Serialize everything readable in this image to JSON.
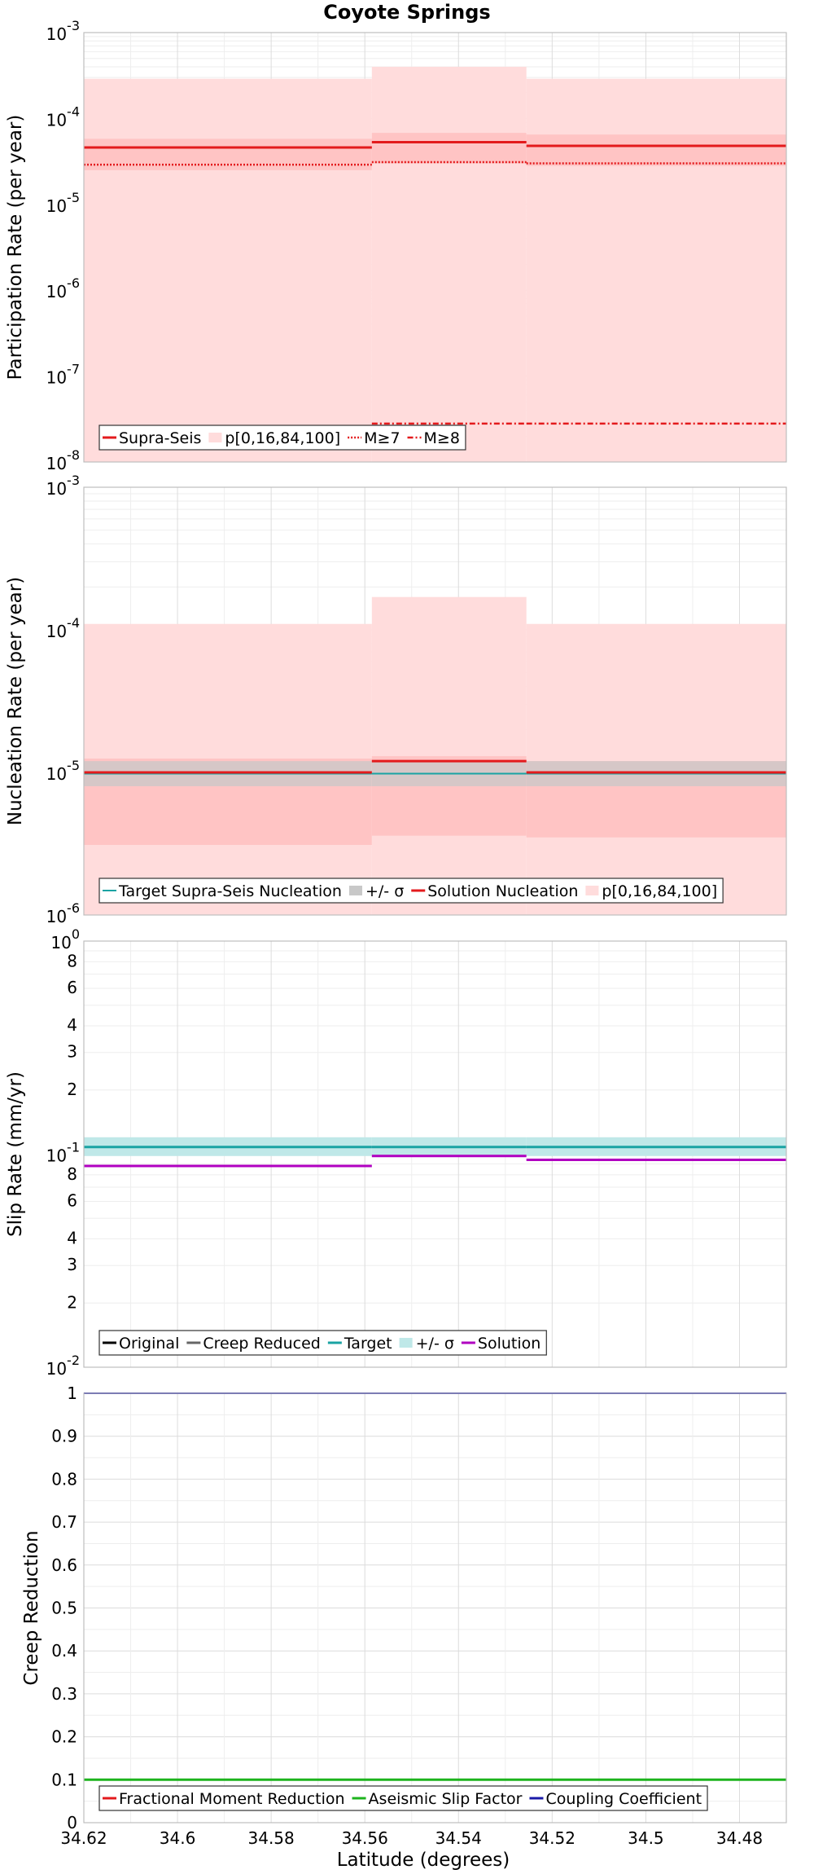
{
  "chart_data": {
    "type": "line",
    "title": "Coyote Springs",
    "xlabel": "Latitude (degrees)",
    "xlim": [
      34.62,
      34.47
    ],
    "x_ticks": [
      "34.62",
      "34.6",
      "34.58",
      "34.56",
      "34.54",
      "34.52",
      "34.5",
      "34.48"
    ],
    "x_tick_values": [
      34.62,
      34.6,
      34.58,
      34.56,
      34.54,
      34.52,
      34.5,
      34.48
    ],
    "panels": [
      {
        "id": "participation",
        "ylabel": "Participation Rate (per year)",
        "yscale": "log",
        "ylim": [
          1e-08,
          0.001
        ],
        "y_ticks": [
          {
            "value": 0.001,
            "base": "10",
            "exp": "-3"
          },
          {
            "value": 0.0001,
            "base": "10",
            "exp": "-4"
          },
          {
            "value": 1e-05,
            "base": "10",
            "exp": "-5"
          },
          {
            "value": 1e-06,
            "base": "10",
            "exp": "-6"
          },
          {
            "value": 1e-07,
            "base": "10",
            "exp": "-7"
          },
          {
            "value": 1e-08,
            "base": "10",
            "exp": "-8"
          }
        ],
        "legend": [
          "Supra-Seis",
          "p[0,16,84,100]",
          "M≥7",
          "M≥8"
        ],
        "sections": [
          {
            "x0": 34.62,
            "x1": 34.5585,
            "supra_seis": 4.6e-05,
            "m7": 2.9e-05,
            "m8": null,
            "p0": 1e-08,
            "p16": 2.5e-05,
            "p84": 5.8e-05,
            "p100": 0.00029
          },
          {
            "x0": 34.5585,
            "x1": 34.5255,
            "supra_seis": 5.3e-05,
            "m7": 3.1e-05,
            "m8": 2.8e-08,
            "p0": 1e-08,
            "p16": 3e-05,
            "p84": 6.8e-05,
            "p100": 0.0004
          },
          {
            "x0": 34.5255,
            "x1": 34.47,
            "supra_seis": 4.8e-05,
            "m7": 3e-05,
            "m8": 2.8e-08,
            "p0": 1e-08,
            "p16": 2.8e-05,
            "p84": 6.5e-05,
            "p100": 0.00029
          }
        ]
      },
      {
        "id": "nucleation",
        "ylabel": "Nucleation Rate (per year)",
        "yscale": "log",
        "ylim": [
          1e-06,
          0.001
        ],
        "y_ticks": [
          {
            "value": 0.001,
            "base": "10",
            "exp": "-3"
          },
          {
            "value": 0.0001,
            "base": "10",
            "exp": "-4"
          },
          {
            "value": 1e-05,
            "base": "10",
            "exp": "-5"
          },
          {
            "value": 1e-06,
            "base": "10",
            "exp": "-6"
          }
        ],
        "legend": [
          "Target Supra-Seis Nucleation",
          "+/- σ",
          "Solution Nucleation",
          "p[0,16,84,100]"
        ],
        "sections": [
          {
            "x0": 34.62,
            "x1": 34.5585,
            "target": 9.8e-06,
            "sigma_lo": 8e-06,
            "sigma_hi": 1.2e-05,
            "solution": 1e-05,
            "p0": 1e-06,
            "p16": 3.1e-06,
            "p84": 1.25e-05,
            "p100": 0.00011
          },
          {
            "x0": 34.5585,
            "x1": 34.5255,
            "target": 9.8e-06,
            "sigma_lo": 8e-06,
            "sigma_hi": 1.2e-05,
            "solution": 1.2e-05,
            "p0": 1e-06,
            "p16": 3.6e-06,
            "p84": 1.3e-05,
            "p100": 0.00017
          },
          {
            "x0": 34.5255,
            "x1": 34.47,
            "target": 9.8e-06,
            "sigma_lo": 8e-06,
            "sigma_hi": 1.2e-05,
            "solution": 1e-05,
            "p0": 1e-06,
            "p16": 3.5e-06,
            "p84": 1.2e-05,
            "p100": 0.00011
          }
        ]
      },
      {
        "id": "slip",
        "ylabel": "Slip Rate (mm/yr)",
        "yscale": "log",
        "ylim": [
          0.01,
          1.0
        ],
        "y_ticks": [
          {
            "value": 1.0,
            "base": "10",
            "exp": "0"
          },
          {
            "value": 0.1,
            "base": "10",
            "exp": "-1"
          },
          {
            "value": 0.01,
            "base": "10",
            "exp": "-2"
          }
        ],
        "y_minor_ticks": [
          {
            "value": 0.8,
            "label": "8"
          },
          {
            "value": 0.6,
            "label": "6"
          },
          {
            "value": 0.4,
            "label": "4"
          },
          {
            "value": 0.3,
            "label": "3"
          },
          {
            "value": 0.2,
            "label": "2"
          },
          {
            "value": 0.08,
            "label": "8"
          },
          {
            "value": 0.06,
            "label": "6"
          },
          {
            "value": 0.04,
            "label": "4"
          },
          {
            "value": 0.03,
            "label": "3"
          },
          {
            "value": 0.02,
            "label": "2"
          }
        ],
        "legend": [
          "Original",
          "Creep Reduced",
          "Target",
          "+/- σ",
          "Solution"
        ],
        "sections": [
          {
            "x0": 34.62,
            "x1": 34.5585,
            "target": 0.108,
            "sigma_lo": 0.098,
            "sigma_hi": 0.12,
            "solution": 0.088
          },
          {
            "x0": 34.5585,
            "x1": 34.5255,
            "target": 0.108,
            "sigma_lo": 0.098,
            "sigma_hi": 0.12,
            "solution": 0.098
          },
          {
            "x0": 34.5255,
            "x1": 34.47,
            "target": 0.108,
            "sigma_lo": 0.098,
            "sigma_hi": 0.12,
            "solution": 0.094
          }
        ]
      },
      {
        "id": "creep",
        "ylabel": "Creep Reduction",
        "yscale": "linear",
        "ylim": [
          0,
          1
        ],
        "y_ticks": [
          {
            "value": 1.0,
            "label": "1"
          },
          {
            "value": 0.9,
            "label": "0.9"
          },
          {
            "value": 0.8,
            "label": "0.8"
          },
          {
            "value": 0.7,
            "label": "0.7"
          },
          {
            "value": 0.6,
            "label": "0.6"
          },
          {
            "value": 0.5,
            "label": "0.5"
          },
          {
            "value": 0.4,
            "label": "0.4"
          },
          {
            "value": 0.3,
            "label": "0.3"
          },
          {
            "value": 0.2,
            "label": "0.2"
          },
          {
            "value": 0.1,
            "label": "0.1"
          },
          {
            "value": 0.0,
            "label": "0"
          }
        ],
        "legend": [
          "Fractional Moment Reduction",
          "Aseismic Slip Factor",
          "Coupling Coefficient"
        ],
        "series": [
          {
            "name": "Aseismic Slip Factor",
            "value": 0.1
          },
          {
            "name": "Coupling Coefficient",
            "value": 1.0
          }
        ]
      }
    ],
    "colors": {
      "red": "#e31a1c",
      "red_fill": "#ffdcdc",
      "red_fill_inner": "#ffc4c4",
      "teal": "#1aa3a3",
      "teal_fill": "#bfe8e8",
      "gray_fill": "#c8c8c8",
      "gray_line": "#666666",
      "purple": "#b000c0",
      "green": "#1db31d",
      "navy": "#1a1aa8",
      "black": "#000000"
    }
  }
}
